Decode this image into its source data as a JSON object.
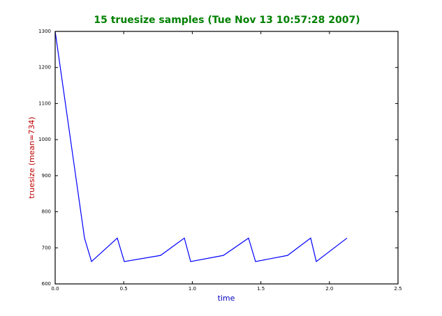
{
  "chart_data": {
    "type": "line",
    "title": "15 truesize samples (Tue Nov 13 10:57:28 2007)",
    "x_label": "time",
    "y_label": "truesize (mean=734)",
    "x": [
      0,
      0.214,
      0.265,
      0.453,
      0.504,
      0.769,
      0.942,
      0.988,
      1.227,
      1.41,
      1.461,
      1.695,
      1.863,
      1.904,
      2.128
    ],
    "values": [
      1300,
      727,
      662,
      727,
      662,
      679,
      727,
      662,
      679,
      727,
      662,
      679,
      727,
      662,
      727
    ],
    "color": "#0000ff",
    "xlim": [
      0,
      2.5
    ],
    "ylim": [
      600,
      1300
    ],
    "xticks": [
      {
        "value": 0,
        "label": "0.0"
      },
      {
        "value": 0.5,
        "label": "0.5"
      },
      {
        "value": 1,
        "label": "1.0"
      },
      {
        "value": 1.5,
        "label": "1.5"
      },
      {
        "value": 2,
        "label": "2.0"
      },
      {
        "value": 2.5,
        "label": "2.5"
      }
    ],
    "yticks": [
      600,
      700,
      800,
      900,
      1000,
      1100,
      1200,
      1300
    ],
    "title_color": "#008000",
    "x_label_color": "#0000bf",
    "y_label_color": "#bf0000"
  }
}
